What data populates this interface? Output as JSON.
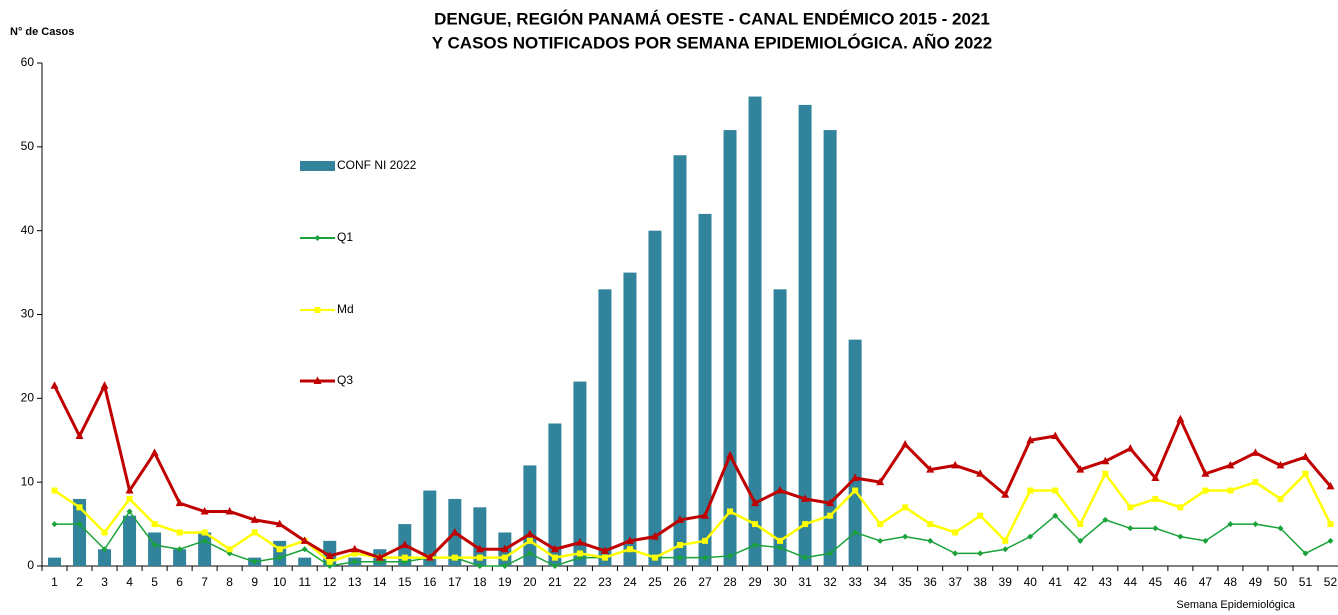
{
  "chart_data": {
    "type": "bar_line",
    "title": [
      "DENGUE, REGIÓN PANAMÁ OESTE - CANAL ENDÉMICO 2015 - 2021",
      "Y CASOS NOTIFICADOS POR SEMANA EPIDEMIOLÓGICA. AÑO 2022"
    ],
    "y_label": "N° de Casos",
    "x_label": "Semana Epidemiológica",
    "x": [
      1,
      2,
      3,
      4,
      5,
      6,
      7,
      8,
      9,
      10,
      11,
      12,
      13,
      14,
      15,
      16,
      17,
      18,
      19,
      20,
      21,
      22,
      23,
      24,
      25,
      26,
      27,
      28,
      29,
      30,
      31,
      32,
      33,
      34,
      35,
      36,
      37,
      38,
      39,
      40,
      41,
      42,
      43,
      44,
      45,
      46,
      47,
      48,
      49,
      50,
      51,
      52
    ],
    "xlim": [
      0.5,
      52.5
    ],
    "ylim": [
      0,
      60
    ],
    "yticks": [
      0,
      10,
      20,
      30,
      40,
      50,
      60
    ],
    "grid": false,
    "series": [
      {
        "name": "CONF NI 2022",
        "type": "bar",
        "color": "#31849b",
        "values": [
          1,
          8,
          2,
          6,
          4,
          2,
          4,
          0,
          1,
          3,
          1,
          3,
          1,
          2,
          5,
          9,
          8,
          7,
          4,
          12,
          17,
          22,
          33,
          35,
          40,
          49,
          42,
          52,
          56,
          33,
          55,
          52,
          27,
          null,
          null,
          null,
          null,
          null,
          null,
          null,
          null,
          null,
          null,
          null,
          null,
          null,
          null,
          null,
          null,
          null,
          null,
          null
        ]
      },
      {
        "name": "Q1",
        "type": "line",
        "color": "#1aa33a",
        "marker": "diamond",
        "values": [
          5,
          5,
          2,
          6.5,
          2.5,
          2,
          3,
          1.5,
          0.5,
          1,
          2,
          0,
          0.5,
          0.5,
          0.5,
          1,
          1,
          0,
          0,
          1.5,
          0,
          1,
          1,
          2,
          1,
          1,
          1,
          1.2,
          2.5,
          2.2,
          1,
          1.5,
          4,
          3,
          3.5,
          3,
          1.5,
          1.5,
          2,
          3.5,
          6,
          3,
          5.5,
          4.5,
          4.5,
          3.5,
          3,
          5,
          5,
          4.5,
          1.5,
          3
        ]
      },
      {
        "name": "Md",
        "type": "line",
        "color": "#ffff00",
        "marker": "square",
        "values": [
          9,
          7,
          4,
          8,
          5,
          4,
          4,
          2,
          4,
          2,
          3,
          0.5,
          1.5,
          1,
          1,
          1,
          1,
          1,
          1,
          3,
          1,
          1.5,
          1,
          2,
          1,
          2.5,
          3,
          6.5,
          5,
          3,
          5,
          6,
          9,
          5,
          7,
          5,
          4,
          6,
          3,
          9,
          9,
          5,
          11,
          7,
          8,
          7,
          9,
          9,
          10,
          8,
          11,
          5
        ]
      },
      {
        "name": "Q3",
        "type": "line",
        "color": "#c00000",
        "marker": "triangle",
        "values": [
          21.5,
          15.5,
          21.5,
          9,
          13.5,
          7.5,
          6.5,
          6.5,
          5.5,
          5,
          3,
          1.2,
          2,
          1,
          2.5,
          1,
          4,
          2,
          2,
          3.8,
          2,
          2.8,
          1.8,
          3,
          3.5,
          5.5,
          6,
          13.2,
          7.5,
          9,
          8,
          7.5,
          10.5,
          10,
          14.5,
          11.5,
          12,
          11,
          8.5,
          15,
          15.5,
          11.5,
          12.5,
          14,
          10.5,
          17.5,
          11,
          12,
          13.5,
          12,
          13,
          9.5
        ]
      }
    ]
  }
}
